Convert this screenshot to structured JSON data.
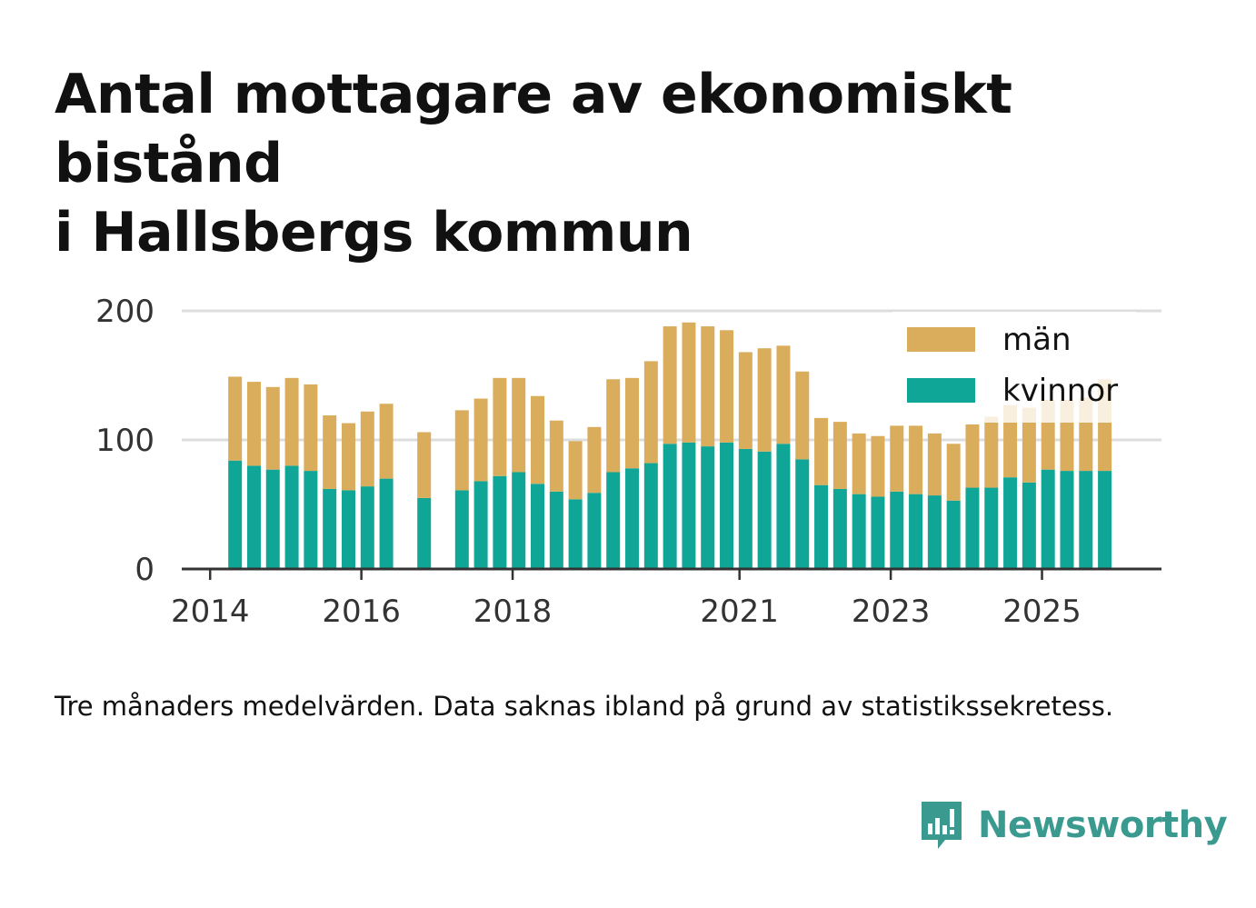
{
  "title_line1": "Antal mottagare av ekonomiskt bistånd",
  "title_line2": "i Hallsbergs kommun",
  "caption": "Tre månaders medelvärden. Data saknas ibland på grund av statistikssekretess.",
  "brand": {
    "name": "Newsworthy",
    "icon": "newsworthy-logo-icon"
  },
  "colors": {
    "man": "#d9ad5c",
    "kvinnor": "#0fa597",
    "grid": "#dddddd",
    "axis": "#333333",
    "brand": "#3a9a90"
  },
  "chart_data": {
    "type": "bar",
    "stacked": true,
    "title": "Antal mottagare av ekonomiskt bistånd i Hallsbergs kommun",
    "xlabel": "",
    "ylabel": "",
    "ylim": [
      0,
      200
    ],
    "yticks": [
      0,
      100,
      200
    ],
    "xticks": [
      {
        "label": "2014",
        "x": 2014.0
      },
      {
        "label": "2016",
        "x": 2016.0
      },
      {
        "label": "2018",
        "x": 2018.0
      },
      {
        "label": "2021",
        "x": 2021.0
      },
      {
        "label": "2023",
        "x": 2023.0
      },
      {
        "label": "2025",
        "x": 2025.0
      }
    ],
    "xlim": [
      2013.625,
      2026.58
    ],
    "legend_position": "top-right",
    "x": [
      2014.33,
      2014.58,
      2014.83,
      2015.08,
      2015.33,
      2015.58,
      2015.83,
      2016.08,
      2016.33,
      2016.58,
      2016.83,
      2017.08,
      2017.33,
      2017.58,
      2017.83,
      2018.08,
      2018.33,
      2018.58,
      2018.83,
      2019.08,
      2019.33,
      2019.58,
      2019.83,
      2020.08,
      2020.33,
      2020.58,
      2020.83,
      2021.08,
      2021.33,
      2021.58,
      2021.83,
      2022.08,
      2022.33,
      2022.58,
      2022.83,
      2023.08,
      2023.33,
      2023.58,
      2023.83,
      2024.08,
      2024.33,
      2024.58,
      2024.83,
      2025.08,
      2025.33,
      2025.58,
      2025.83
    ],
    "series": [
      {
        "name": "kvinnor",
        "color": "#0fa597",
        "values": [
          84,
          80,
          77,
          80,
          76,
          62,
          61,
          64,
          70,
          null,
          55,
          null,
          61,
          68,
          72,
          75,
          66,
          60,
          54,
          59,
          75,
          78,
          82,
          97,
          98,
          95,
          98,
          93,
          91,
          97,
          85,
          65,
          62,
          58,
          56,
          60,
          58,
          57,
          53,
          63,
          63,
          71,
          67,
          77,
          76,
          76,
          76
        ]
      },
      {
        "name": "män",
        "color": "#d9ad5c",
        "values": [
          65,
          65,
          64,
          68,
          67,
          57,
          52,
          58,
          58,
          null,
          51,
          null,
          62,
          64,
          76,
          73,
          68,
          55,
          45,
          51,
          72,
          70,
          79,
          91,
          93,
          93,
          87,
          75,
          80,
          76,
          68,
          52,
          52,
          47,
          47,
          51,
          53,
          48,
          44,
          49,
          55,
          56,
          58,
          54,
          55,
          57,
          71
        ]
      }
    ]
  }
}
